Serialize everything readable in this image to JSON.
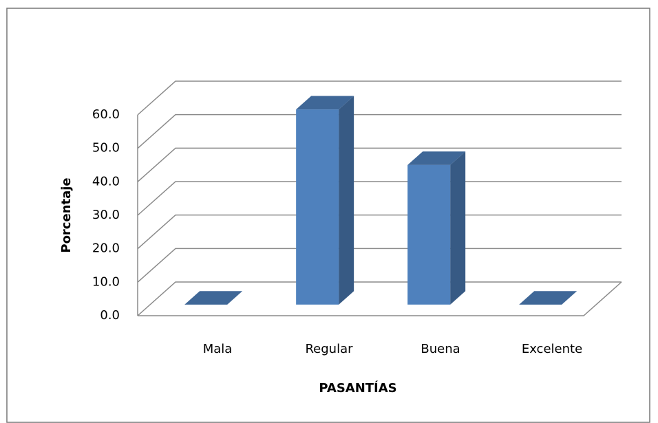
{
  "chart_data": {
    "type": "bar3d",
    "categories": [
      "Mala",
      "Regular",
      "Buena",
      "Excelente"
    ],
    "values": [
      0,
      58.3,
      41.7,
      0
    ],
    "color": "#4f81bd",
    "xlabel": "PASANTÍAS",
    "ylabel": "Porcentaje",
    "ylim": [
      0,
      60
    ],
    "yticks": [
      {
        "value": 0,
        "label": "0.0"
      },
      {
        "value": 10,
        "label": "10.0"
      },
      {
        "value": 20,
        "label": "20.0"
      },
      {
        "value": 30,
        "label": "30.0"
      },
      {
        "value": 40,
        "label": "40.0"
      },
      {
        "value": 50,
        "label": "50.0"
      },
      {
        "value": 60,
        "label": "60.0"
      }
    ],
    "grid": true
  }
}
